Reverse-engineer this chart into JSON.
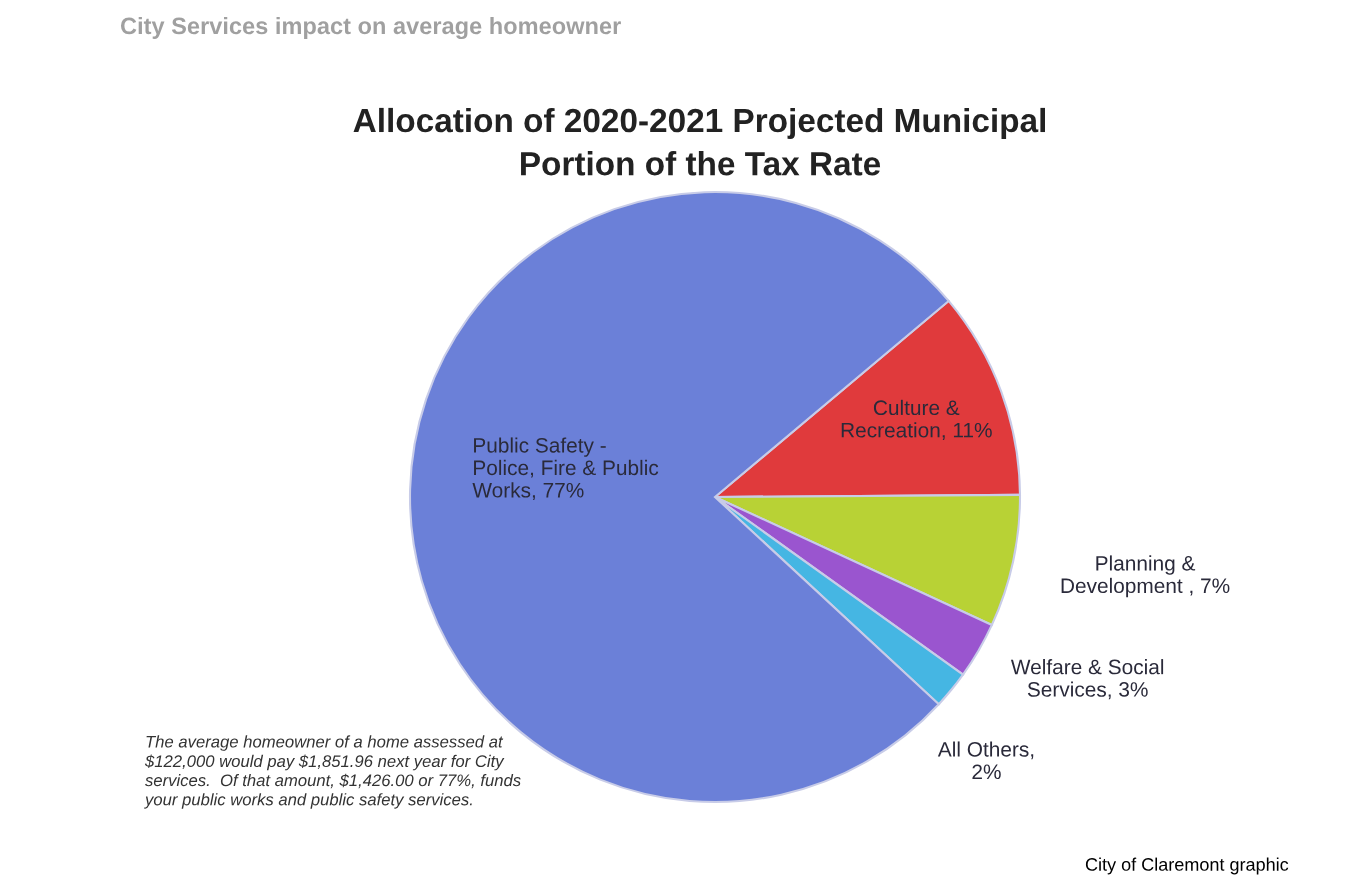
{
  "chart_data": {
    "type": "pie",
    "title": "Allocation of 2020-2021 Projected Municipal\nPortion of the Tax Rate",
    "categories": [
      "Culture &\nRecreation, 11%",
      "Planning &\nDevelopment , 7%",
      "Welfare & Social\nServices, 3%",
      "All Others,\n2%",
      "Public Safety -\nPolice, Fire & Public\nWorks, 77%"
    ],
    "values": [
      11,
      7,
      3,
      2,
      77
    ],
    "colors": [
      "#e03a3c",
      "#b8d235",
      "#9a55cf",
      "#45b6e3",
      "#6b80d8"
    ],
    "annotations": [
      "City Services impact on average homeowner",
      "The average homeowner of a home assessed at\n$122,000 would pay $1,851.96 next year for City\nservices.  Of that amount, $1,426.00 or 77%, funds\nyour public works and public safety services.",
      "City of Claremont graphic"
    ]
  }
}
